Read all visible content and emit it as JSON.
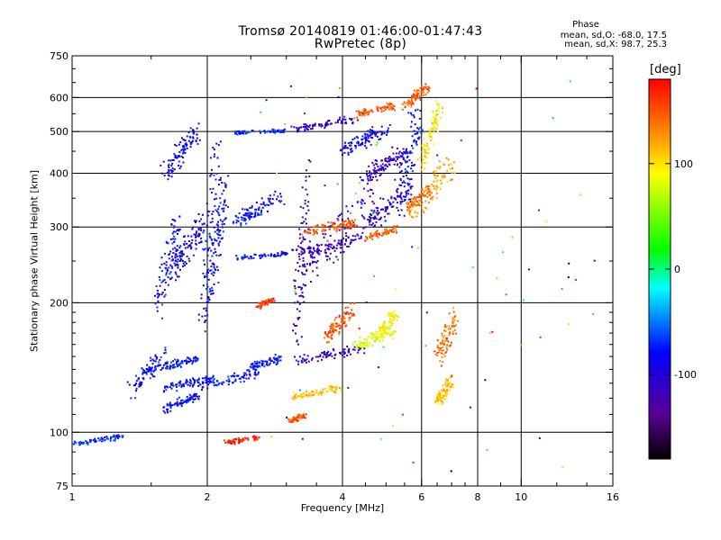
{
  "chart_data": {
    "type": "scatter",
    "title": "Tromsø 20140819 01:46:00-01:47:43",
    "subtitle": "RwPretec (8p)",
    "xlabel": "Frequency [MHz]",
    "ylabel": "Stationary phase Virtual Height [km]",
    "x_scale": "log",
    "y_scale": "log",
    "xlim": [
      1,
      16
    ],
    "ylim": [
      75,
      750
    ],
    "x_ticks": [
      "1",
      "2",
      "4",
      "6",
      "8",
      "10",
      "16"
    ],
    "y_ticks": [
      "75",
      "100",
      "200",
      "300",
      "400",
      "500",
      "600",
      "750"
    ],
    "x_ticks_values": [
      1,
      2,
      4,
      6,
      8,
      10,
      16
    ],
    "y_ticks_values": [
      75,
      100,
      200,
      300,
      400,
      500,
      600,
      750
    ],
    "x_grid": [
      2,
      4,
      6,
      8,
      10
    ],
    "y_grid": [
      100,
      200,
      300,
      400,
      500,
      600
    ],
    "grid": true,
    "colorbar": {
      "label": "deg",
      "range": [
        -180,
        180
      ],
      "ticks": [
        "100",
        "0",
        "-100"
      ],
      "ticks_values": [
        100,
        0,
        -100
      ],
      "colors": [
        "#000000",
        "#5a0096",
        "#0000ff",
        "#00ffff",
        "#00ff00",
        "#ffff00",
        "#ff8000",
        "#ff0000"
      ]
    },
    "series": [
      {
        "segments": [
          {
            "f": [
              1.35,
              1.6
            ],
            "h": [
              118,
              160
            ],
            "ph": -80,
            "spread": 0.04
          },
          {
            "f": [
              1.6,
              1.9
            ],
            "h": [
              112,
              123
            ],
            "ph": -80,
            "spread": 0.03
          },
          {
            "f": [
              1.6,
              2.05
            ],
            "h": [
              125,
              135
            ],
            "ph": -80,
            "spread": 0.03
          },
          {
            "f": [
              1.6,
              1.9
            ],
            "h": [
              140,
              150
            ],
            "ph": -75,
            "spread": 0.03
          },
          {
            "f": [
              1.9,
              2.6
            ],
            "h": [
              125,
              140
            ],
            "ph": -78,
            "spread": 0.03
          },
          {
            "f": [
              1.55,
              1.72
            ],
            "h": [
              180,
              330
            ],
            "ph": -80,
            "spread": 0.04
          },
          {
            "f": [
              1.6,
              1.9
            ],
            "h": [
              380,
              520
            ],
            "ph": -85,
            "spread": 0.05
          },
          {
            "f": [
              1.65,
              1.95
            ],
            "h": [
              220,
              320
            ],
            "ph": -90,
            "spread": 0.06
          },
          {
            "f": [
              1.95,
              2.1
            ],
            "h": [
              160,
              500
            ],
            "ph": -78,
            "spread": 0.05
          },
          {
            "f": [
              2.05,
              2.2
            ],
            "h": [
              200,
              420
            ],
            "ph": -82,
            "spread": 0.04
          },
          {
            "f": [
              1.0,
              1.3
            ],
            "h": [
              93,
              99
            ],
            "ph": -70,
            "spread": 0.02
          },
          {
            "f": [
              2.3,
              3.0
            ],
            "h": [
              252,
              262
            ],
            "ph": -80,
            "spread": 0.02
          },
          {
            "f": [
              2.3,
              3.0
            ],
            "h": [
              495,
              505
            ],
            "ph": -70,
            "spread": 0.02
          },
          {
            "f": [
              2.3,
              2.9
            ],
            "h": [
              300,
              360
            ],
            "ph": -80,
            "spread": 0.05
          },
          {
            "f": [
              2.5,
              2.9
            ],
            "h": [
              140,
              150
            ],
            "ph": -75,
            "spread": 0.03
          },
          {
            "f": [
              2.6,
              2.8
            ],
            "h": [
              195,
              205
            ],
            "ph": 160,
            "spread": 0.02
          },
          {
            "f": [
              3.1,
              4.5
            ],
            "h": [
              255,
              290
            ],
            "ph": -110,
            "spread": 0.03
          },
          {
            "f": [
              3.1,
              4.3
            ],
            "h": [
              500,
              540
            ],
            "ph": -110,
            "spread": 0.03
          },
          {
            "f": [
              4.5,
              5.7
            ],
            "h": [
              290,
              380
            ],
            "ph": -105,
            "spread": 0.04
          },
          {
            "f": [
              3.15,
              3.35
            ],
            "h": [
              140,
              460
            ],
            "ph": -120,
            "spread": 0.04
          },
          {
            "f": [
              3.3,
              4.8
            ],
            "h": [
              220,
              380
            ],
            "ph": -110,
            "spread": 0.07
          },
          {
            "f": [
              3.3,
              4.3
            ],
            "h": [
              290,
              310
            ],
            "ph": 150,
            "spread": 0.04
          },
          {
            "f": [
              4.5,
              5.3
            ],
            "h": [
              280,
              300
            ],
            "ph": 150,
            "spread": 0.02
          },
          {
            "f": [
              3.1,
              4.5
            ],
            "h": [
              143,
              160
            ],
            "ph": -115,
            "spread": 0.03
          },
          {
            "f": [
              3.7,
              4.2
            ],
            "h": [
              160,
              200
            ],
            "ph": 150,
            "spread": 0.04
          },
          {
            "f": [
              3.1,
              4.0
            ],
            "h": [
              120,
              128
            ],
            "ph": 110,
            "spread": 0.03
          },
          {
            "f": [
              4.2,
              5.2
            ],
            "h": [
              155,
              175
            ],
            "ph": 80,
            "spread": 0.04
          },
          {
            "f": [
              4.8,
              5.3
            ],
            "h": [
              165,
              195
            ],
            "ph": 90,
            "spread": 0.03
          },
          {
            "f": [
              3.05,
              3.3
            ],
            "h": [
              106,
              110
            ],
            "ph": 150,
            "spread": 0.02
          },
          {
            "f": [
              2.2,
              2.6
            ],
            "h": [
              94,
              98
            ],
            "ph": 170,
            "spread": 0.02
          },
          {
            "f": [
              4.3,
              5.2
            ],
            "h": [
              540,
              580
            ],
            "ph": 150,
            "spread": 0.03
          },
          {
            "f": [
              5.7,
              7.0
            ],
            "h": [
              300,
              450
            ],
            "ph": 120,
            "spread": 0.04
          },
          {
            "f": [
              6.0,
              6.6
            ],
            "h": [
              400,
              600
            ],
            "ph": 100,
            "spread": 0.04
          },
          {
            "f": [
              5.3,
              5.9
            ],
            "h": [
              300,
              620
            ],
            "ph": -80,
            "spread": 0.05
          },
          {
            "f": [
              5.5,
              6.3
            ],
            "h": [
              320,
              380
            ],
            "ph": 140,
            "spread": 0.03
          },
          {
            "f": [
              4.0,
              5.0
            ],
            "h": [
              440,
              520
            ],
            "ph": -85,
            "spread": 0.05
          },
          {
            "f": [
              4.5,
              5.5
            ],
            "h": [
              380,
              460
            ],
            "ph": -110,
            "spread": 0.06
          },
          {
            "f": [
              5.5,
              6.2
            ],
            "h": [
              560,
              650
            ],
            "ph": 150,
            "spread": 0.03
          },
          {
            "f": [
              6.5,
              7.2
            ],
            "h": [
              140,
              200
            ],
            "ph": 140,
            "spread": 0.04
          },
          {
            "f": [
              6.5,
              7.0
            ],
            "h": [
              115,
              135
            ],
            "ph": 110,
            "spread": 0.03
          }
        ]
      }
    ]
  },
  "stats": {
    "title": "Phase",
    "line_o": "mean, sd,O: -68.0, 17.5",
    "line_x": "mean, sd,X:  98.7, 25.3"
  }
}
